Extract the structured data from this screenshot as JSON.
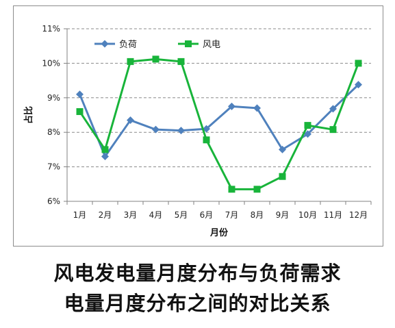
{
  "chart_data": {
    "type": "line",
    "categories": [
      "1月",
      "2月",
      "3月",
      "4月",
      "5月",
      "6月",
      "7月",
      "8月",
      "9月",
      "10月",
      "11月",
      "12月"
    ],
    "series": [
      {
        "name": "负荷",
        "values": [
          9.1,
          7.3,
          8.35,
          8.08,
          8.05,
          8.1,
          8.75,
          8.7,
          7.5,
          7.95,
          8.68,
          9.38
        ],
        "color": "#4f81bd",
        "marker": "diamond"
      },
      {
        "name": "风电",
        "values": [
          8.6,
          7.5,
          10.05,
          10.12,
          10.05,
          7.78,
          6.35,
          6.35,
          6.72,
          8.2,
          8.08,
          10.0
        ],
        "color": "#18b43a",
        "marker": "square"
      }
    ],
    "ylim": [
      6,
      11
    ],
    "yticks": [
      "6%",
      "7%",
      "8%",
      "9%",
      "10%",
      "11%"
    ],
    "ylabel": "占比",
    "xlabel": "月份",
    "grid": true,
    "legend_position": "top-left"
  },
  "caption": {
    "line1": "风电发电量月度分布与负荷需求",
    "line2": "电量月度分布之间的对比关系"
  }
}
